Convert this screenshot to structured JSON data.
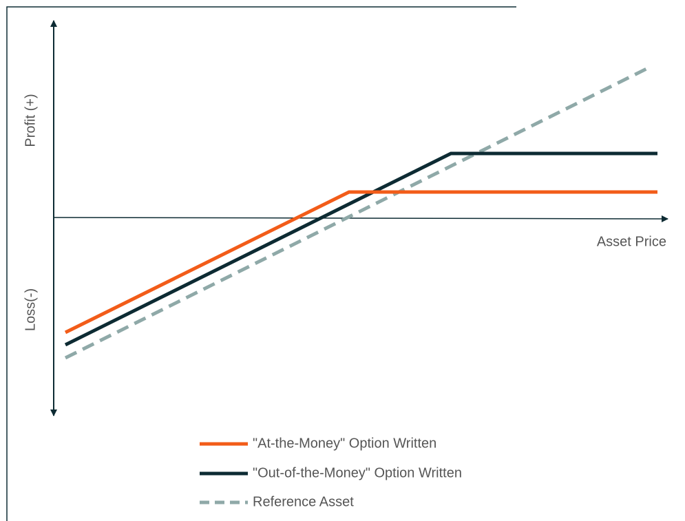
{
  "axes": {
    "y_top_label": "Profit (+)",
    "y_bottom_label": "Loss(-)",
    "x_label": "Asset Price"
  },
  "legend": [
    "\"At-the-Money\" Option Written",
    "\"Out-of-the-Money\" Option Written",
    "Reference Asset"
  ]
}
